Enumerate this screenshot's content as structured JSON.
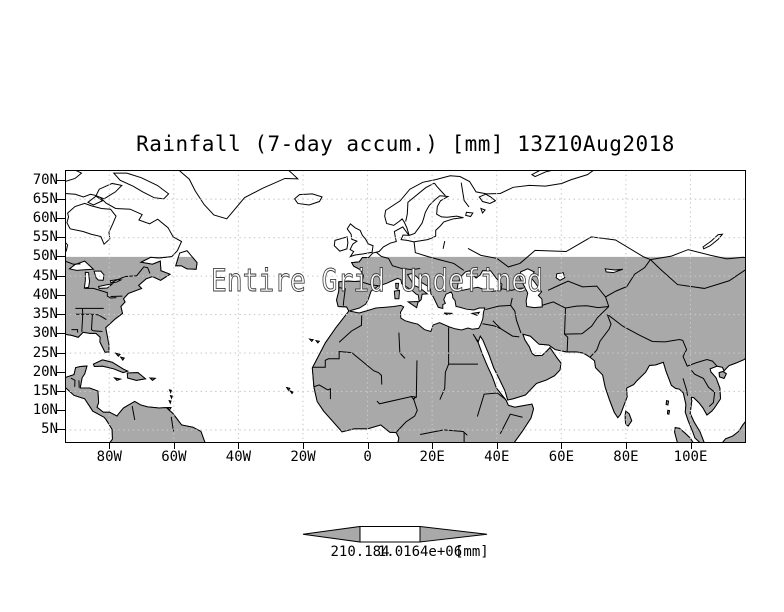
{
  "title": "Rainfall (7-day accum.) [mm] 13Z10Aug2018",
  "map": {
    "overlay_message": "Entire Grid Undefined",
    "lat_labels": [
      "70N",
      "65N",
      "60N",
      "55N",
      "50N",
      "45N",
      "40N",
      "35N",
      "30N",
      "25N",
      "20N",
      "15N",
      "10N",
      "5N"
    ],
    "lon_labels": [
      "80W",
      "60W",
      "40W",
      "20W",
      "0",
      "20E",
      "40E",
      "60E",
      "80E",
      "100E"
    ]
  },
  "colorbar": {
    "left_tick": "210.184",
    "right_tick": "1.0164e+06",
    "units": "[mm]"
  },
  "colors": {
    "land": "#a9a9a9",
    "ocean": "#ffffff",
    "coastline": "#000000",
    "grid_dots": "#c9c9c9",
    "text": "#000000",
    "background": "#ffffff"
  },
  "chart_data": {
    "type": "heatmap",
    "title": "Rainfall (7-day accum.) [mm] 13Z10Aug2018",
    "xlabel": "",
    "ylabel": "",
    "x_ticks": [
      "80W",
      "60W",
      "40W",
      "20W",
      "0",
      "20E",
      "40E",
      "60E",
      "80E",
      "100E"
    ],
    "y_ticks": [
      "70N",
      "65N",
      "60N",
      "55N",
      "50N",
      "45N",
      "40N",
      "35N",
      "30N",
      "25N",
      "20N",
      "15N",
      "10N",
      "5N"
    ],
    "xlim": [
      "93.5W",
      "117E"
    ],
    "ylim": [
      "1.5N",
      "72.5N"
    ],
    "grid": true,
    "values": [],
    "status": "Entire Grid Undefined",
    "colorbar_ticks": [
      "210.184",
      "1.0164e+06"
    ],
    "colorbar_units": "[mm]",
    "land_shading_cutoff": "50N"
  }
}
